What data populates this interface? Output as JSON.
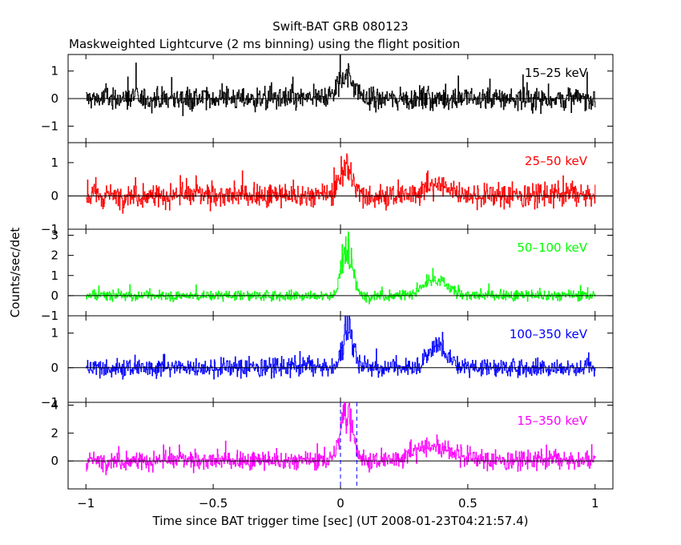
{
  "chart_data": {
    "type": "line",
    "title": "Swift-BAT GRB 080123",
    "subtitle": "Maskweighted Lightcurve (2 ms binning) using the flight position",
    "xlabel": "Time since BAT trigger time [sec] (UT 2008-01-23T04:21:57.4)",
    "ylabel": "Counts/sec/det",
    "xlim": [
      -1.07,
      1.07
    ],
    "x_ticks": [
      -1,
      -0.5,
      0,
      0.5,
      1
    ],
    "x_tick_labels": [
      "−1",
      "−0.5",
      "0",
      "0.5",
      "1"
    ],
    "markers_x": [
      0.0,
      0.064
    ],
    "grid": false,
    "panels": [
      {
        "name": "15–25 keV",
        "color": "#000000",
        "ylim": [
          -1.6,
          1.6
        ],
        "y_ticks": [
          -1,
          0,
          1
        ],
        "y_tick_labels": [
          "−1",
          "0",
          "1"
        ],
        "baseline": 0,
        "noise_amp": 0.55,
        "bursts": [
          [
            0.02,
            0.03,
            0.9
          ]
        ]
      },
      {
        "name": "25–50 keV",
        "color": "#ff0000",
        "ylim": [
          -1.0,
          1.6
        ],
        "y_ticks": [
          -1,
          0,
          1
        ],
        "y_tick_labels": [
          "−1",
          "0",
          "1"
        ],
        "baseline": 0,
        "noise_amp": 0.45,
        "bursts": [
          [
            0.02,
            0.025,
            0.8
          ],
          [
            0.38,
            0.06,
            0.3
          ]
        ]
      },
      {
        "name": "50–100 keV",
        "color": "#00ff00",
        "ylim": [
          -1.0,
          3.3
        ],
        "y_ticks": [
          -1,
          0,
          1,
          2,
          3
        ],
        "y_tick_labels": [
          "−1",
          "0",
          "1",
          "2",
          "3"
        ],
        "baseline": 0,
        "noise_amp": 0.35,
        "bursts": [
          [
            0.025,
            0.02,
            2.6
          ],
          [
            0.37,
            0.05,
            0.7
          ]
        ]
      },
      {
        "name": "100–350 keV",
        "color": "#0000ff",
        "ylim": [
          -1.0,
          1.5
        ],
        "y_ticks": [
          -1,
          0,
          1
        ],
        "y_tick_labels": [
          "−1",
          "0",
          "1"
        ],
        "baseline": 0,
        "noise_amp": 0.35,
        "bursts": [
          [
            0.03,
            0.02,
            1.2
          ],
          [
            0.38,
            0.04,
            0.6
          ]
        ]
      },
      {
        "name": "15–350 keV",
        "color": "#ff00ff",
        "ylim": [
          -2.0,
          4.2
        ],
        "y_ticks": [
          0,
          2,
          4
        ],
        "y_tick_labels": [
          "0",
          "2",
          "4"
        ],
        "baseline": 0,
        "noise_amp": 0.85,
        "bursts": [
          [
            0.025,
            0.025,
            3.5
          ],
          [
            0.37,
            0.08,
            1.1
          ]
        ]
      }
    ]
  }
}
